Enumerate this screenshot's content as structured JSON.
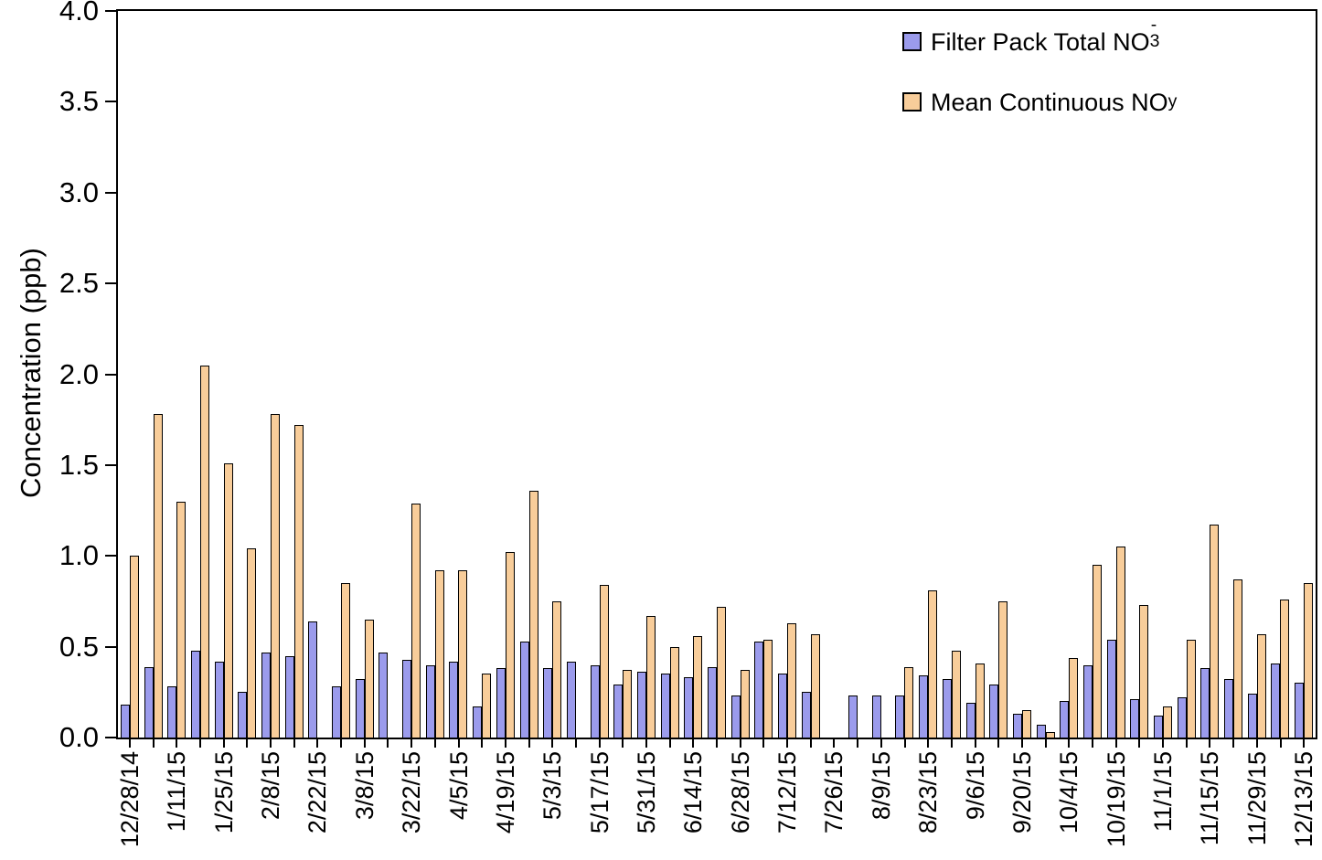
{
  "chart_data": {
    "type": "bar",
    "title": "",
    "xlabel": "",
    "ylabel": "Concentration (ppb)",
    "ylim": [
      0,
      4.0
    ],
    "y_ticks": [
      "0.0",
      "0.5",
      "1.0",
      "1.5",
      "2.0",
      "2.5",
      "3.0",
      "3.5",
      "4.0"
    ],
    "grid": false,
    "legend_position": "top-right-inside",
    "bar_outline_color": "#000000",
    "categories": [
      "12/28/14",
      "",
      "1/11/15",
      "",
      "1/25/15",
      "",
      "2/8/15",
      "",
      "2/22/15",
      "",
      "3/8/15",
      "",
      "3/22/15",
      "",
      "4/5/15",
      "",
      "4/19/15",
      "",
      "5/3/15",
      "",
      "5/17/15",
      "",
      "5/31/15",
      "",
      "6/14/15",
      "",
      "6/28/15",
      "",
      "7/12/15",
      "",
      "7/26/15",
      "",
      "8/9/15",
      "",
      "8/23/15",
      "",
      "9/6/15",
      "",
      "9/20/15",
      "",
      "10/4/15",
      "",
      "10/19/15",
      "",
      "11/1/15",
      "",
      "11/15/15",
      "",
      "11/29/15",
      "",
      "12/13/15"
    ],
    "series": [
      {
        "name": "Filter Pack Total NO3-",
        "color": "#9b9bec",
        "values": [
          0.18,
          0.39,
          0.28,
          0.48,
          0.42,
          0.25,
          0.47,
          0.45,
          0.64,
          0.28,
          0.32,
          0.47,
          0.43,
          0.4,
          0.42,
          0.17,
          0.38,
          0.53,
          0.38,
          0.42,
          0.4,
          0.29,
          0.36,
          0.35,
          0.33,
          0.39,
          0.23,
          0.53,
          0.35,
          0.25,
          null,
          0.23,
          0.23,
          0.23,
          0.34,
          0.32,
          0.19,
          0.29,
          0.13,
          0.07,
          0.2,
          0.4,
          0.54,
          0.21,
          0.12,
          0.22,
          0.38,
          0.32,
          0.24,
          0.41,
          0.3
        ]
      },
      {
        "name": "Mean Continuous NOy",
        "color": "#f8cd9a",
        "values": [
          1.0,
          1.78,
          1.3,
          2.05,
          1.51,
          1.04,
          1.78,
          1.72,
          null,
          0.85,
          0.65,
          null,
          1.29,
          0.92,
          0.92,
          0.35,
          1.02,
          1.36,
          0.75,
          null,
          0.84,
          0.37,
          0.67,
          0.5,
          0.56,
          0.72,
          0.37,
          0.54,
          0.63,
          0.57,
          null,
          null,
          null,
          0.39,
          0.81,
          0.48,
          0.41,
          0.75,
          0.15,
          0.03,
          0.44,
          0.95,
          1.05,
          0.73,
          0.17,
          0.54,
          1.17,
          0.87,
          0.57,
          0.76,
          0.85
        ]
      }
    ],
    "legend": [
      {
        "label_prefix": "Filter Pack Total NO",
        "label_sub": "3",
        "label_sup": "-",
        "color": "#9b9bec"
      },
      {
        "label_prefix": "Mean Continuous NO",
        "label_sub": "y",
        "label_sup": "",
        "color": "#f8cd9a"
      }
    ]
  }
}
